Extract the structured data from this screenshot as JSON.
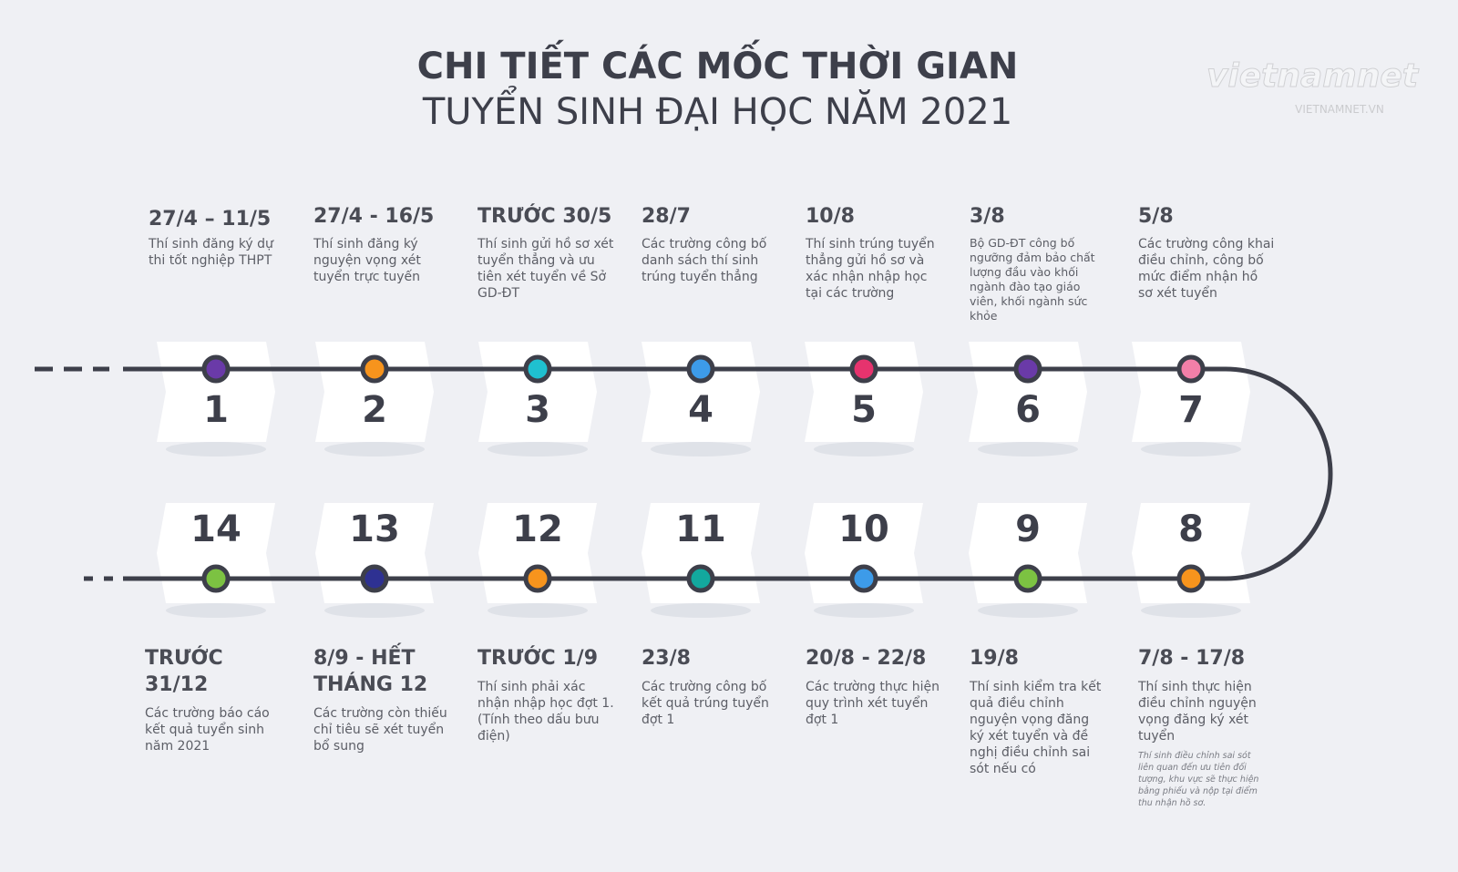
{
  "header": {
    "title_line1": "CHI TIẾT CÁC MỐC THỜI GIAN",
    "title_line2": "TUYỂN SINH ĐẠI HỌC NĂM 2021"
  },
  "logo": {
    "name": "vietnamnet",
    "site": "VIETNAMNET.VN"
  },
  "milestones": [
    {
      "number": "1",
      "date": "27/4 – 11/5",
      "description": "Thí sinh đăng ký dự thi tốt nghiệp THPT",
      "color": "#6a3aa8"
    },
    {
      "number": "2",
      "date": "27/4 - 16/5",
      "description": "Thí sinh đăng ký nguyện vọng xét tuyển trực tuyến",
      "color": "#f7941d"
    },
    {
      "number": "3",
      "date": "TRƯỚC 30/5",
      "description": "Thí sinh gửi hồ sơ xét tuyển thẳng và ưu tiên xét tuyển về Sở GD-ĐT",
      "color": "#1fc0d0"
    },
    {
      "number": "4",
      "date": "28/7",
      "description": "Các trường công bố danh sách thí sinh trúng tuyển thẳng",
      "color": "#3d9be9"
    },
    {
      "number": "5",
      "date": "10/8",
      "description": "Thí sinh trúng tuyển thẳng gửi hồ sơ và xác nhận nhập học tại các trường",
      "color": "#e6336e"
    },
    {
      "number": "6",
      "date": "3/8",
      "description": "Bộ GD-ĐT công bố ngưỡng đảm bảo chất lượng đầu vào khối ngành đào tạo giáo viên, khối ngành sức khỏe",
      "color": "#6a3aa8"
    },
    {
      "number": "7",
      "date": "5/8",
      "description": "Các trường công khai điều chỉnh, công bố mức điểm nhận hồ sơ xét tuyển",
      "color": "#f27fa8"
    },
    {
      "number": "8",
      "date": "7/8 - 17/8",
      "description": "Thí sinh thực hiện điều chỉnh nguyện vọng đăng ký xét tuyển",
      "note": "Thí sinh điều chỉnh sai sót liên quan đến ưu tiên đối tượng, khu vực sẽ thực hiện bằng phiếu và nộp tại điểm thu nhận hồ sơ.",
      "color": "#f7941d"
    },
    {
      "number": "9",
      "date": "19/8",
      "description": "Thí sinh kiểm tra kết quả điều chỉnh nguyện vọng đăng ký xét tuyển và đề nghị điều chỉnh sai sót nếu có",
      "color": "#7cc242"
    },
    {
      "number": "10",
      "date": "20/8 - 22/8",
      "description": "Các trường thực hiện quy trình xét tuyển đợt 1",
      "color": "#3d9be9"
    },
    {
      "number": "11",
      "date": "23/8",
      "description": "Các trường công bố kết quả trúng tuyển đợt 1",
      "color": "#13a89e"
    },
    {
      "number": "12",
      "date": "TRƯỚC 1/9",
      "description": "Thí sinh phải xác nhận nhập học đợt 1. (Tính theo dấu bưu điện)",
      "color": "#f7941d"
    },
    {
      "number": "13",
      "date": "8/9 - HẾT THÁNG 12",
      "description": "Các trường còn thiếu chỉ tiêu sẽ xét tuyển bổ sung",
      "color": "#2e3192"
    },
    {
      "number": "14",
      "date": "TRƯỚC 31/12",
      "description": "Các trường báo cáo kết quả tuyển sinh năm 2021",
      "color": "#7cc242"
    }
  ]
}
